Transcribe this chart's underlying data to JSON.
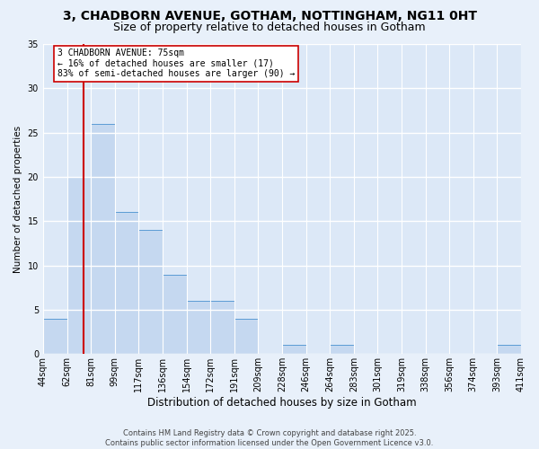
{
  "title1": "3, CHADBORN AVENUE, GOTHAM, NOTTINGHAM, NG11 0HT",
  "title2": "Size of property relative to detached houses in Gotham",
  "xlabel": "Distribution of detached houses by size in Gotham",
  "ylabel": "Number of detached properties",
  "bar_values": [
    4,
    20,
    26,
    16,
    14,
    9,
    6,
    6,
    4,
    0,
    1,
    0,
    1,
    0,
    0,
    0,
    0,
    0,
    0,
    1
  ],
  "bin_labels": [
    "44sqm",
    "62sqm",
    "81sqm",
    "99sqm",
    "117sqm",
    "136sqm",
    "154sqm",
    "172sqm",
    "191sqm",
    "209sqm",
    "228sqm",
    "246sqm",
    "264sqm",
    "283sqm",
    "301sqm",
    "319sqm",
    "338sqm",
    "356sqm",
    "374sqm",
    "393sqm",
    "411sqm"
  ],
  "bar_color": "#c5d8f0",
  "bar_edge_color": "#5b9bd5",
  "property_line_x": 1.5,
  "property_line_color": "#cc0000",
  "annotation_text": "3 CHADBORN AVENUE: 75sqm\n← 16% of detached houses are smaller (17)\n83% of semi-detached houses are larger (90) →",
  "annotation_box_color": "#ffffff",
  "annotation_box_edge": "#cc0000",
  "ylim": [
    0,
    35
  ],
  "yticks": [
    0,
    5,
    10,
    15,
    20,
    25,
    30,
    35
  ],
  "background_color": "#dce8f7",
  "grid_color": "#ffffff",
  "footer_text": "Contains HM Land Registry data © Crown copyright and database right 2025.\nContains public sector information licensed under the Open Government Licence v3.0.",
  "title1_fontsize": 10,
  "title2_fontsize": 9,
  "xlabel_fontsize": 8.5,
  "ylabel_fontsize": 7.5,
  "tick_fontsize": 7,
  "annotation_fontsize": 7,
  "footer_fontsize": 6
}
